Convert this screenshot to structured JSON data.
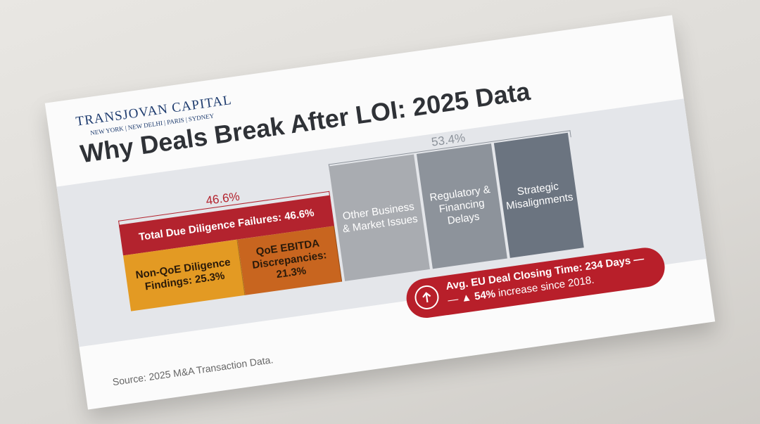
{
  "header": {
    "brand": "TRANSJOVAN CAPITAL",
    "offices": "NEW YORK | NEW DELHI | PARIS | SYDNEY"
  },
  "chart_data": {
    "type": "treemap",
    "title": "Why Deals Break After LOI: 2025 Data",
    "groups": [
      {
        "value": 46.6,
        "value_label": "46.6%",
        "name": "Total Due Diligence Failures: 46.6%",
        "color": "#b3232e",
        "children": [
          {
            "name": "Non-QoE Diligence Findings: 25.3%",
            "value": 25.3,
            "color": "#e39a23"
          },
          {
            "name": "QoE EBITDA Discrepancies: 21.3%",
            "value": 21.3,
            "color": "#c8651f"
          }
        ]
      },
      {
        "value": 53.4,
        "value_label": "53.4%",
        "children": [
          {
            "name": "Other Business & Market Issues",
            "value": 19.4,
            "color": "#a9acb1"
          },
          {
            "name": "Regulatory & Financing Delays",
            "value": 17.0,
            "color": "#8d939b"
          },
          {
            "name": "Strategic Misalignments",
            "value": 17.0,
            "color": "#6b7480"
          }
        ]
      }
    ]
  },
  "callout": {
    "title": "Avg. EU Deal Closing Time: 234 Days —",
    "prefix": "— ▲",
    "highlight": "54%",
    "text": "increase since 2018."
  },
  "source": "Source: 2025 M&A Transaction Data."
}
